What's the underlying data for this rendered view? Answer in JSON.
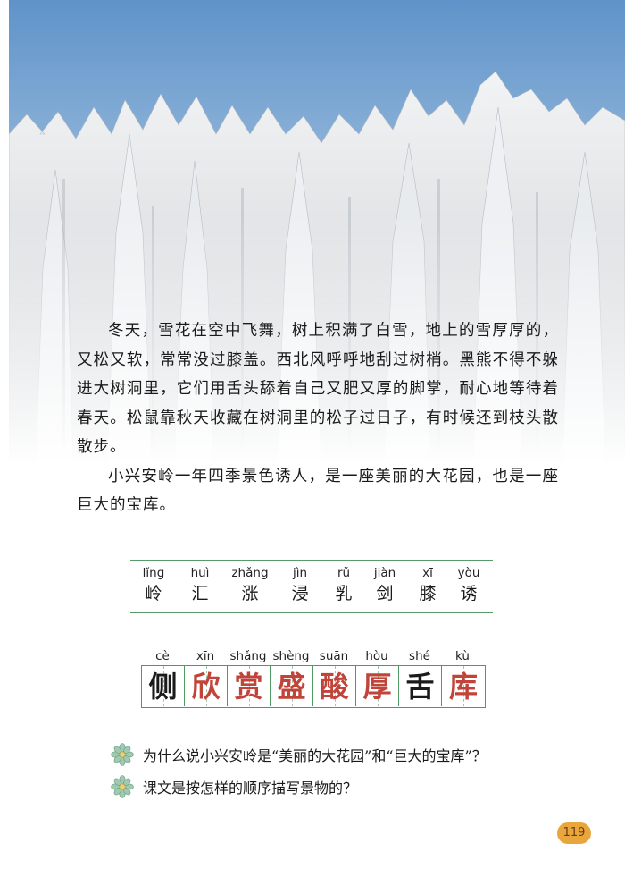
{
  "passage": {
    "paragraphs": [
      "冬天，雪花在空中飞舞，树上积满了白雪，地上的雪厚厚的，又松又软，常常没过膝盖。西北风呼呼地刮过树梢。黑熊不得不躲进大树洞里，它们用舌头舔着自己又肥又厚的脚掌，耐心地等待着春天。松鼠靠秋天收藏在树洞里的松子过日子，有时候还到枝头散散步。",
      "小兴安岭一年四季景色诱人，是一座美丽的大花园，也是一座巨大的宝库。"
    ]
  },
  "vocab_read": [
    {
      "pinyin": "lǐng",
      "char": "岭"
    },
    {
      "pinyin": "huì",
      "char": "汇"
    },
    {
      "pinyin": "zhǎng",
      "char": "涨"
    },
    {
      "pinyin": "jìn",
      "char": "浸"
    },
    {
      "pinyin": "rǔ",
      "char": "乳"
    },
    {
      "pinyin": "jiàn",
      "char": "剑"
    },
    {
      "pinyin": "xī",
      "char": "膝"
    },
    {
      "pinyin": "yòu",
      "char": "诱"
    }
  ],
  "vocab_write": [
    {
      "pinyin": "cè",
      "char": "侧",
      "color": "#1a1a1a"
    },
    {
      "pinyin": "xīn",
      "char": "欣",
      "color": "#c0443a"
    },
    {
      "pinyin": "shǎng",
      "char": "赏",
      "color": "#c0443a"
    },
    {
      "pinyin": "shèng",
      "char": "盛",
      "color": "#c0443a"
    },
    {
      "pinyin": "suān",
      "char": "酸",
      "color": "#c0443a"
    },
    {
      "pinyin": "hòu",
      "char": "厚",
      "color": "#c0443a"
    },
    {
      "pinyin": "shé",
      "char": "舌",
      "color": "#1a1a1a"
    },
    {
      "pinyin": "kù",
      "char": "库",
      "color": "#c0443a"
    }
  ],
  "questions": [
    "为什么说小兴安岭是“美丽的大花园”和“巨大的宝库”？",
    "课文是按怎样的顺序描写景物的？"
  ],
  "page_number": "119",
  "icons": {
    "question_marker": "flower-icon"
  },
  "colors": {
    "grid": "#4f9a62",
    "accent_red": "#c0443a",
    "page_badge": "#e9a63c"
  }
}
